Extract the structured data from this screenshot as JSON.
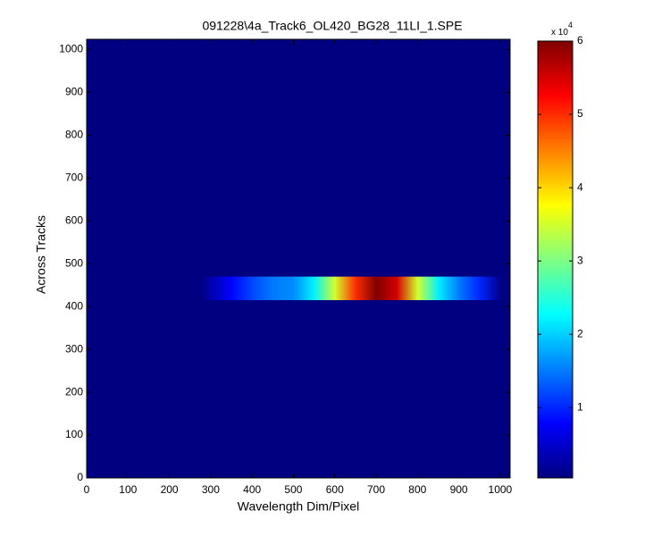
{
  "chart_data": {
    "type": "heatmap",
    "title": "091228\\4a_Track6_OL420_BG28_11LI_1.SPE",
    "xlabel": "Wavelength Dim/Pixel",
    "ylabel": "Across Tracks",
    "xlim": [
      0,
      1024
    ],
    "ylim": [
      0,
      1024
    ],
    "xticks": [
      0,
      100,
      200,
      300,
      400,
      500,
      600,
      700,
      800,
      900,
      1000
    ],
    "yticks": [
      0,
      100,
      200,
      300,
      400,
      500,
      600,
      700,
      800,
      900,
      1000
    ],
    "colormap": "jet",
    "background": 0.04,
    "band": {
      "ylim": [
        415,
        470
      ],
      "x": [
        280,
        350,
        400,
        450,
        500,
        550,
        600,
        650,
        700,
        750,
        800,
        850,
        900,
        950,
        1000
      ],
      "values": [
        0.1,
        0.8,
        1.2,
        1.5,
        1.6,
        2.2,
        3.5,
        5,
        6,
        5.5,
        3.5,
        2.2,
        1.5,
        1,
        0.1
      ]
    },
    "colorbar": {
      "clim": [
        0.04,
        6
      ],
      "ticks": [
        1,
        2,
        3,
        4,
        5,
        6
      ],
      "multiplier": "x 10",
      "exponent": "4"
    }
  }
}
